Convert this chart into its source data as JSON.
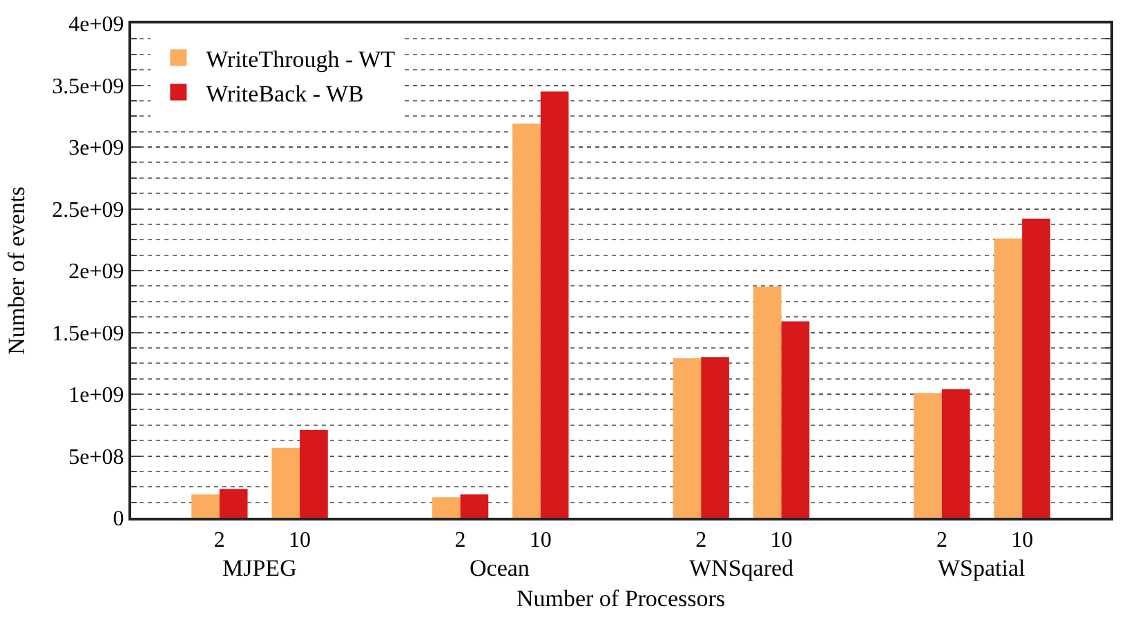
{
  "chart_data": {
    "type": "bar",
    "xlabel": "Number of Processors",
    "ylabel": "Number of events",
    "categories": [
      "2",
      "10",
      null,
      "2",
      "10",
      null,
      "2",
      "10",
      null,
      "2",
      "10"
    ],
    "annotations": [
      "MJPEG",
      "Ocean",
      "WNSqared",
      "WSpatial"
    ],
    "series": [
      {
        "name": "WriteThrough - WT",
        "color": "#fbac5f",
        "values": [
          188000000.0,
          565000000.0,
          null,
          166000000.0,
          3190000000.0,
          null,
          1290000000.0,
          1870000000.0,
          null,
          1010000000.0,
          2260000000.0
        ]
      },
      {
        "name": "WriteBack - WB",
        "color": "#d7191c",
        "values": [
          233000000.0,
          710000000.0,
          null,
          188000000.0,
          3450000000.0,
          null,
          1300000000.0,
          1590000000.0,
          null,
          1040000000.0,
          2420000000.0
        ]
      }
    ],
    "ylim": [
      0,
      4000000000.0
    ],
    "yticks": [
      0,
      {
        "value": 500000000.0,
        "label": "5e+08"
      },
      {
        "value": 1000000000.0,
        "label": "1e+09"
      },
      {
        "value": 1500000000.0,
        "label": "1.5e+09"
      },
      {
        "value": 2000000000.0,
        "label": "2e+09"
      },
      {
        "value": 2500000000.0,
        "label": "2.5e+09"
      },
      {
        "value": 3000000000.0,
        "label": "3e+09"
      },
      {
        "value": 3500000000.0,
        "label": "3.5e+09"
      },
      {
        "value": 4000000000.0,
        "label": "4e+09"
      }
    ],
    "grid": "y",
    "legend": "top left"
  }
}
